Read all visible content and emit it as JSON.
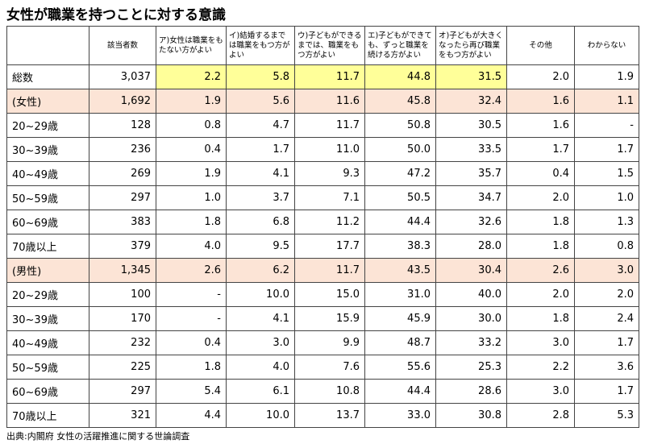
{
  "title": "女性が職業を持つことに対する意識",
  "table": {
    "header": [
      "",
      "該当者数",
      "ア)女性は職業をもたない方がよい",
      "イ)結婚するまでは職業をもつ方がよい",
      "ウ)子どもができるまでは、職業をもつ方がよい",
      "エ)子どもができても、ずっと職業を続ける方がよい",
      "オ)子どもが大きくなったら再び職業をもつ方がよい",
      "その他",
      "わからない"
    ],
    "rows": [
      [
        "総数",
        "3,037",
        "2.2",
        "5.8",
        "11.7",
        "44.8",
        "31.5",
        "2.0",
        "1.9"
      ],
      [
        "(女性)",
        "1,692",
        "1.9",
        "5.6",
        "11.6",
        "45.8",
        "32.4",
        "1.6",
        "1.1"
      ],
      [
        "20~29歳",
        "128",
        "0.8",
        "4.7",
        "11.7",
        "50.8",
        "30.5",
        "1.6",
        "-"
      ],
      [
        "30~39歳",
        "236",
        "0.4",
        "1.7",
        "11.0",
        "50.0",
        "33.5",
        "1.7",
        "1.7"
      ],
      [
        "40~49歳",
        "269",
        "1.9",
        "4.1",
        "9.3",
        "47.2",
        "35.7",
        "0.4",
        "1.5"
      ],
      [
        "50~59歳",
        "297",
        "1.0",
        "3.7",
        "7.1",
        "50.5",
        "34.7",
        "2.0",
        "1.0"
      ],
      [
        "60~69歳",
        "383",
        "1.8",
        "6.8",
        "11.2",
        "44.4",
        "32.6",
        "1.8",
        "1.3"
      ],
      [
        "70歳以上",
        "379",
        "4.0",
        "9.5",
        "17.7",
        "38.3",
        "28.0",
        "1.8",
        "0.8"
      ],
      [
        "(男性)",
        "1,345",
        "2.6",
        "6.2",
        "11.7",
        "43.5",
        "30.4",
        "2.6",
        "3.0"
      ],
      [
        "20~29歳",
        "100",
        "-",
        "10.0",
        "15.0",
        "31.0",
        "40.0",
        "2.0",
        "2.0"
      ],
      [
        "30~39歳",
        "170",
        "-",
        "4.1",
        "15.9",
        "45.9",
        "30.0",
        "1.8",
        "2.4"
      ],
      [
        "40~49歳",
        "232",
        "0.4",
        "3.0",
        "9.9",
        "48.7",
        "33.2",
        "3.0",
        "1.7"
      ],
      [
        "50~59歳",
        "225",
        "1.8",
        "4.0",
        "7.6",
        "55.6",
        "25.3",
        "2.2",
        "3.6"
      ],
      [
        "60~69歳",
        "297",
        "5.4",
        "6.1",
        "10.8",
        "44.4",
        "28.6",
        "3.0",
        "1.7"
      ],
      [
        "70歳以上",
        "321",
        "4.4",
        "10.0",
        "13.7",
        "33.0",
        "30.8",
        "2.8",
        "5.3"
      ]
    ]
  },
  "source": "出典:内閣府 女性の活躍推進に関する世論調査"
}
